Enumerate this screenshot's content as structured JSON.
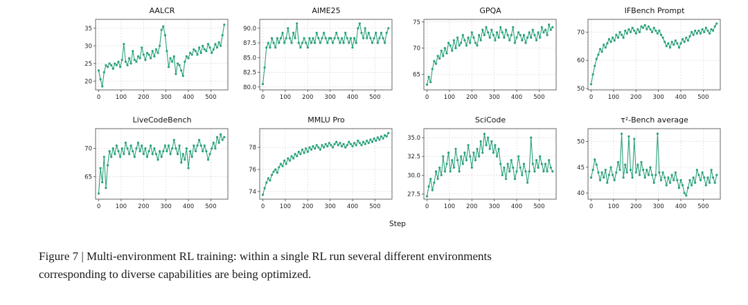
{
  "figure": {
    "line_color": "#2aa17c",
    "caption": "Figure 7 | Multi-environment RL training: within a single RL run several different environments\ncorresponding to diverse capabilities are being optimized."
  },
  "chart_data": {
    "type": "line",
    "xlabel": "Step",
    "legend": "none",
    "grid": "dashed",
    "xticks": [
      0,
      100,
      200,
      300,
      400,
      500
    ],
    "steps": [
      0,
      8,
      16,
      24,
      32,
      40,
      48,
      56,
      64,
      72,
      80,
      88,
      96,
      104,
      112,
      120,
      128,
      136,
      144,
      152,
      160,
      168,
      176,
      184,
      192,
      200,
      208,
      216,
      224,
      232,
      240,
      248,
      256,
      264,
      272,
      280,
      288,
      296,
      304,
      312,
      320,
      328,
      336,
      344,
      352,
      360,
      368,
      376,
      384,
      392,
      400,
      408,
      416,
      424,
      432,
      440,
      448,
      456,
      464,
      472,
      480,
      488,
      496,
      504,
      512,
      520,
      528,
      536,
      544,
      552,
      560
    ],
    "charts": [
      {
        "title": "AALCR",
        "ylim": [
          17.5,
          37.5
        ],
        "yticks": [
          20,
          25,
          30,
          35
        ],
        "ytick_decimals": 0,
        "values": [
          23.0,
          20.5,
          18.5,
          22.5,
          24.5,
          24.0,
          25.0,
          24.5,
          23.5,
          25.0,
          24.5,
          25.5,
          24.0,
          26.0,
          30.5,
          25.5,
          24.5,
          26.5,
          25.0,
          28.5,
          26.0,
          25.5,
          27.0,
          26.5,
          29.5,
          27.5,
          26.0,
          28.0,
          27.5,
          26.5,
          28.5,
          27.0,
          29.0,
          28.0,
          30.0,
          34.5,
          35.5,
          33.0,
          28.5,
          24.0,
          26.5,
          25.5,
          27.0,
          22.0,
          25.0,
          24.5,
          23.0,
          21.5,
          25.5,
          27.0,
          26.5,
          28.0,
          27.5,
          29.0,
          28.5,
          27.5,
          29.5,
          28.0,
          30.0,
          29.0,
          28.5,
          30.5,
          29.5,
          28.0,
          29.0,
          30.5,
          29.5,
          31.0,
          30.0,
          33.0,
          36.0
        ]
      },
      {
        "title": "AIME25",
        "ylim": [
          79.5,
          91.5
        ],
        "yticks": [
          80.0,
          82.5,
          85.0,
          87.5,
          90.0
        ],
        "ytick_decimals": 1,
        "values": [
          80.5,
          83.3,
          86.7,
          87.5,
          86.7,
          88.3,
          87.5,
          86.7,
          88.3,
          87.5,
          88.3,
          89.2,
          87.5,
          88.3,
          90.0,
          88.3,
          87.5,
          89.2,
          88.3,
          90.8,
          87.5,
          86.7,
          87.5,
          88.3,
          87.5,
          86.7,
          88.3,
          87.5,
          88.3,
          87.5,
          89.2,
          88.3,
          87.5,
          88.3,
          89.2,
          88.3,
          87.5,
          88.3,
          88.3,
          87.5,
          88.3,
          89.2,
          88.3,
          87.5,
          88.3,
          87.5,
          89.2,
          88.3,
          87.5,
          88.3,
          86.7,
          88.3,
          87.5,
          90.0,
          90.8,
          89.2,
          88.3,
          90.0,
          88.3,
          89.2,
          88.3,
          87.5,
          88.3,
          89.2,
          87.5,
          88.3,
          89.2,
          88.3,
          87.5,
          89.2,
          90.0
        ]
      },
      {
        "title": "GPQA",
        "ylim": [
          62.0,
          75.5
        ],
        "yticks": [
          65,
          70,
          75
        ],
        "ytick_decimals": 0,
        "values": [
          63.0,
          64.5,
          63.5,
          66.0,
          67.5,
          67.0,
          68.5,
          68.0,
          69.5,
          68.5,
          70.0,
          69.0,
          71.0,
          70.5,
          69.5,
          71.5,
          70.0,
          72.0,
          70.5,
          71.0,
          72.5,
          71.5,
          70.5,
          72.0,
          71.0,
          73.0,
          72.0,
          71.0,
          70.5,
          72.5,
          71.5,
          73.5,
          72.5,
          74.0,
          73.0,
          72.0,
          73.5,
          72.5,
          71.5,
          73.0,
          72.0,
          74.0,
          73.0,
          72.0,
          73.5,
          72.5,
          71.5,
          72.5,
          74.0,
          71.0,
          72.0,
          73.0,
          72.5,
          71.5,
          72.5,
          71.0,
          72.0,
          73.0,
          72.0,
          73.5,
          72.5,
          71.5,
          73.0,
          72.0,
          74.0,
          73.0,
          73.5,
          72.5,
          74.5,
          73.5,
          74.0
        ]
      },
      {
        "title": "IFBench Prompt",
        "ylim": [
          49.5,
          74.5
        ],
        "yticks": [
          50,
          60,
          70
        ],
        "ytick_decimals": 0,
        "values": [
          51.5,
          55.0,
          58.0,
          60.5,
          62.0,
          64.0,
          63.0,
          65.5,
          64.5,
          66.0,
          67.5,
          66.5,
          68.0,
          67.0,
          69.0,
          68.0,
          70.0,
          69.0,
          68.0,
          70.5,
          69.5,
          71.0,
          70.0,
          71.5,
          70.5,
          69.5,
          71.0,
          70.0,
          72.0,
          71.5,
          72.5,
          71.0,
          72.0,
          71.0,
          70.0,
          71.5,
          70.5,
          69.5,
          70.5,
          69.0,
          68.0,
          66.5,
          65.0,
          66.0,
          64.5,
          66.5,
          65.5,
          67.0,
          66.0,
          64.5,
          66.0,
          67.5,
          66.5,
          68.0,
          67.0,
          68.5,
          70.0,
          69.0,
          70.5,
          69.5,
          70.5,
          69.5,
          71.0,
          70.0,
          71.5,
          70.5,
          69.5,
          71.0,
          70.5,
          72.0,
          73.0
        ]
      },
      {
        "title": "LiveCodeBench",
        "ylim": [
          61.0,
          73.5
        ],
        "yticks": [
          65,
          70
        ],
        "ytick_decimals": 0,
        "values": [
          62.0,
          66.5,
          64.0,
          68.5,
          63.0,
          67.0,
          69.5,
          68.5,
          70.0,
          69.0,
          70.5,
          69.5,
          68.5,
          70.0,
          69.0,
          71.0,
          70.0,
          69.0,
          70.5,
          69.5,
          68.5,
          70.0,
          71.0,
          69.5,
          70.5,
          69.0,
          70.0,
          68.5,
          69.5,
          70.5,
          69.0,
          70.0,
          69.0,
          68.0,
          69.5,
          68.5,
          69.5,
          70.5,
          69.5,
          70.5,
          69.0,
          70.0,
          71.5,
          70.0,
          69.0,
          70.5,
          67.5,
          69.0,
          68.0,
          70.0,
          66.5,
          69.5,
          68.5,
          70.5,
          69.5,
          70.5,
          71.5,
          70.5,
          69.5,
          70.5,
          69.5,
          68.0,
          69.0,
          70.0,
          71.0,
          70.0,
          72.0,
          71.0,
          72.5,
          71.5,
          72.0
        ]
      },
      {
        "title": "MMLU Pro",
        "ylim": [
          73.3,
          79.7
        ],
        "yticks": [
          74,
          76,
          78
        ],
        "ytick_decimals": 0,
        "values": [
          73.7,
          74.3,
          74.8,
          75.2,
          75.0,
          75.5,
          75.8,
          76.0,
          75.7,
          76.2,
          76.5,
          76.3,
          76.8,
          76.5,
          77.0,
          76.8,
          77.2,
          77.0,
          77.4,
          77.2,
          77.6,
          77.4,
          77.8,
          77.5,
          77.9,
          77.6,
          78.0,
          77.8,
          78.1,
          77.9,
          78.2,
          78.0,
          77.8,
          78.2,
          78.0,
          78.3,
          78.1,
          78.4,
          78.2,
          78.0,
          78.3,
          78.5,
          78.2,
          78.4,
          78.1,
          78.3,
          78.0,
          78.2,
          78.5,
          78.3,
          78.1,
          78.4,
          78.2,
          78.6,
          78.4,
          78.2,
          78.5,
          78.3,
          78.6,
          78.4,
          78.7,
          78.5,
          78.8,
          78.6,
          78.9,
          78.7,
          79.0,
          78.8,
          79.1,
          79.0,
          79.3
        ]
      },
      {
        "title": "SciCode",
        "ylim": [
          26.8,
          36.2
        ],
        "yticks": [
          27.5,
          30.0,
          32.5,
          35.0
        ],
        "ytick_decimals": 1,
        "values": [
          27.2,
          28.5,
          29.5,
          28.0,
          29.0,
          30.5,
          29.5,
          31.0,
          30.0,
          32.5,
          30.5,
          31.5,
          33.0,
          30.5,
          32.0,
          31.0,
          33.5,
          32.0,
          30.5,
          32.5,
          31.5,
          33.0,
          32.0,
          34.0,
          32.5,
          31.0,
          33.0,
          32.0,
          33.5,
          32.5,
          34.5,
          33.0,
          35.5,
          34.0,
          35.0,
          33.5,
          34.5,
          33.0,
          34.0,
          32.5,
          33.5,
          31.5,
          30.0,
          31.0,
          29.5,
          31.5,
          30.5,
          32.0,
          31.0,
          29.5,
          30.5,
          32.5,
          31.0,
          30.0,
          31.5,
          30.5,
          29.0,
          30.5,
          35.0,
          31.5,
          30.5,
          32.0,
          31.0,
          32.5,
          31.5,
          30.5,
          31.5,
          30.5,
          32.0,
          31.0,
          30.5
        ]
      },
      {
        "title": "τ²-Bench average",
        "ylim": [
          38.8,
          52.5
        ],
        "yticks": [
          40,
          45,
          50
        ],
        "ytick_decimals": 0,
        "values": [
          43.0,
          44.5,
          46.5,
          45.5,
          44.0,
          42.5,
          44.0,
          43.0,
          44.5,
          42.0,
          43.5,
          45.0,
          43.5,
          42.5,
          44.0,
          46.0,
          44.5,
          51.5,
          43.0,
          45.5,
          44.0,
          51.0,
          44.5,
          43.0,
          50.5,
          44.0,
          45.5,
          43.5,
          46.0,
          44.5,
          43.0,
          44.5,
          43.5,
          45.0,
          43.5,
          42.0,
          43.5,
          51.5,
          44.0,
          42.5,
          44.0,
          43.0,
          41.5,
          43.0,
          42.0,
          43.5,
          42.5,
          44.0,
          42.5,
          41.0,
          42.5,
          41.5,
          40.0,
          39.5,
          41.0,
          42.5,
          41.5,
          43.0,
          42.0,
          44.5,
          43.5,
          42.5,
          44.0,
          43.0,
          41.5,
          43.0,
          42.0,
          44.5,
          43.0,
          42.0,
          43.5
        ]
      }
    ]
  }
}
